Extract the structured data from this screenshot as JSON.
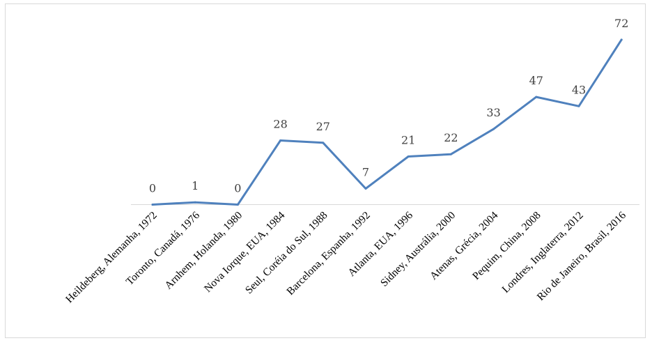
{
  "chart_data": {
    "type": "line",
    "categories": [
      "Heildeberg, Alemanha, 1972",
      "Toronto, Canadá, 1976",
      "Arnhem, Holanda, 1980",
      "Nova Iorque, EUA, 1984",
      "Seul, Coréia do Sul, 1988",
      "Barcelona, Espanha, 1992",
      "Atlanta, EUA, 1996",
      "Sidney, Austrália, 2000",
      "Atenas, Grécia, 2004",
      "Pequim, China, 2008",
      "Londres, Inglaterra, 2012",
      "Rio de Janeiro, Brasil, 2016"
    ],
    "values": [
      0,
      1,
      0,
      28,
      27,
      7,
      21,
      22,
      33,
      47,
      43,
      72
    ],
    "data_labels": [
      "0",
      "1",
      "0",
      "28",
      "27",
      "7",
      "21",
      "22",
      "33",
      "47",
      "43",
      "72"
    ],
    "title": "",
    "xlabel": "",
    "ylabel": "",
    "ylim": [
      0,
      72
    ],
    "grid": false,
    "legend": "none",
    "line_color": "#4f81bd",
    "axis_color": "#d9d9d9"
  }
}
